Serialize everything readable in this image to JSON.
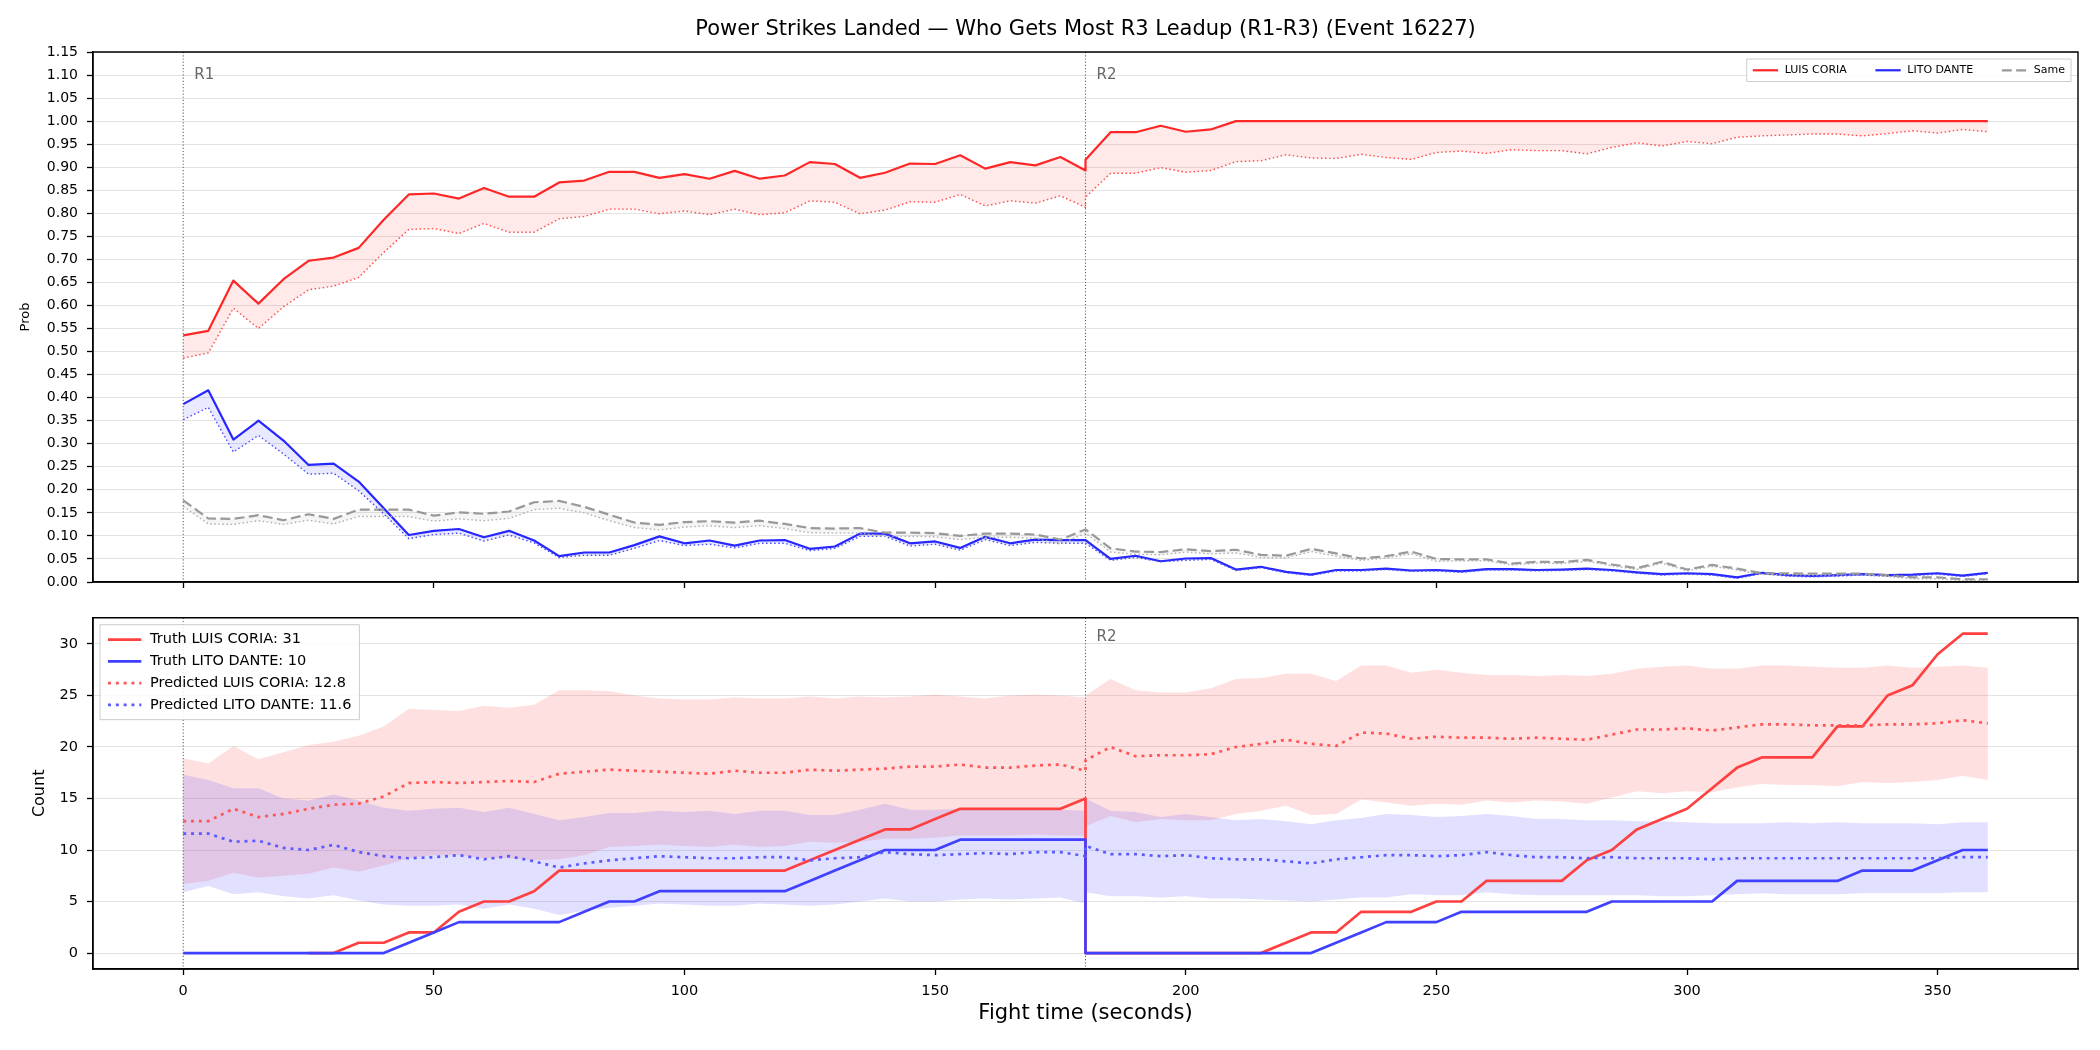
{
  "chart_data": [
    {
      "type": "line",
      "title": "Power Strikes Landed — Who Gets Most R3 Leadup (R1-R3) (Event 16227)",
      "ylabel": "Prob",
      "x": [
        0,
        5,
        10,
        15,
        20,
        25,
        30,
        35,
        40,
        45,
        50,
        55,
        60,
        65,
        70,
        75,
        80,
        85,
        90,
        95,
        100,
        105,
        110,
        115,
        120,
        125,
        130,
        135,
        140,
        145,
        150,
        155,
        160,
        165,
        170,
        175,
        180,
        180,
        185,
        190,
        195,
        200,
        205,
        210,
        215,
        220,
        225,
        230,
        235,
        240,
        245,
        250,
        255,
        260,
        265,
        270,
        275,
        280,
        285,
        290,
        295,
        300,
        305,
        310,
        315,
        320,
        325,
        330,
        335,
        340,
        345,
        350,
        355,
        360
      ],
      "xlim": [
        -18,
        378
      ],
      "xticks": [
        0,
        50,
        100,
        150,
        200,
        250,
        300,
        350
      ],
      "ylim": [
        0,
        1.15
      ],
      "yticks": [
        {
          "value": 0,
          "label": "0.00"
        },
        {
          "value": 0.05,
          "label": "0.05"
        },
        {
          "value": 0.1,
          "label": "0.10"
        },
        {
          "value": 0.15,
          "label": "0.15"
        },
        {
          "value": 0.2,
          "label": "0.20"
        },
        {
          "value": 0.25,
          "label": "0.25"
        },
        {
          "value": 0.3,
          "label": "0.30"
        },
        {
          "value": 0.35,
          "label": "0.35"
        },
        {
          "value": 0.4,
          "label": "0.40"
        },
        {
          "value": 0.45,
          "label": "0.45"
        },
        {
          "value": 0.5,
          "label": "0.50"
        },
        {
          "value": 0.55,
          "label": "0.55"
        },
        {
          "value": 0.6,
          "label": "0.60"
        },
        {
          "value": 0.65,
          "label": "0.65"
        },
        {
          "value": 0.7,
          "label": "0.70"
        },
        {
          "value": 0.75,
          "label": "0.75"
        },
        {
          "value": 0.8,
          "label": "0.80"
        },
        {
          "value": 0.85,
          "label": "0.85"
        },
        {
          "value": 0.9,
          "label": "0.90"
        },
        {
          "value": 0.95,
          "label": "0.95"
        },
        {
          "value": 1,
          "label": "1.00"
        },
        {
          "value": 1.05,
          "label": "1.05"
        },
        {
          "value": 1.1,
          "label": "1.10"
        },
        {
          "value": 1.15,
          "label": "1.15"
        }
      ],
      "tick_labels": "y",
      "grid": "y",
      "legend": "top right",
      "ref_lines": [
        {
          "axis": "x",
          "value": 0,
          "label": "R1",
          "color": "#666666",
          "line_style": "dotted"
        },
        {
          "axis": "x",
          "value": 180,
          "label": "R2",
          "color": "#666666",
          "line_style": "dotted"
        }
      ],
      "series": [
        {
          "name": "LUIS CORIA",
          "color": "#ff2626",
          "line_style": "solid",
          "values": [
            0.535,
            0.545,
            0.654,
            0.604,
            0.657,
            0.697,
            0.704,
            0.725,
            0.786,
            0.841,
            0.843,
            0.832,
            0.855,
            0.836,
            0.836,
            0.867,
            0.871,
            0.89,
            0.89,
            0.877,
            0.885,
            0.875,
            0.892,
            0.875,
            0.882,
            0.911,
            0.907,
            0.877,
            0.888,
            0.908,
            0.907,
            0.926,
            0.897,
            0.911,
            0.904,
            0.922,
            0.893,
            0.916,
            0.976,
            0.976,
            0.99,
            0.977,
            0.982,
            1,
            1,
            1,
            1,
            1,
            1,
            1,
            1,
            1,
            1,
            1,
            1,
            1,
            1,
            1,
            1,
            1,
            1,
            1,
            1,
            1,
            1,
            1,
            1,
            1,
            1,
            1,
            1,
            1,
            1,
            1
          ],
          "lower": [
            0.486,
            0.497,
            0.594,
            0.55,
            0.597,
            0.634,
            0.642,
            0.661,
            0.715,
            0.765,
            0.767,
            0.756,
            0.778,
            0.759,
            0.759,
            0.788,
            0.793,
            0.809,
            0.809,
            0.799,
            0.805,
            0.797,
            0.809,
            0.797,
            0.801,
            0.827,
            0.824,
            0.799,
            0.807,
            0.825,
            0.824,
            0.841,
            0.816,
            0.827,
            0.822,
            0.838,
            0.813,
            0.835,
            0.887,
            0.887,
            0.899,
            0.889,
            0.893,
            0.912,
            0.914,
            0.927,
            0.92,
            0.919,
            0.928,
            0.921,
            0.917,
            0.932,
            0.935,
            0.93,
            0.938,
            0.936,
            0.936,
            0.929,
            0.943,
            0.953,
            0.946,
            0.956,
            0.951,
            0.965,
            0.968,
            0.97,
            0.972,
            0.972,
            0.968,
            0.973,
            0.979,
            0.974,
            0.982,
            0.977
          ],
          "upper": [
            0.535,
            0.545,
            0.654,
            0.604,
            0.657,
            0.697,
            0.704,
            0.725,
            0.786,
            0.841,
            0.843,
            0.832,
            0.855,
            0.836,
            0.836,
            0.867,
            0.871,
            0.89,
            0.89,
            0.877,
            0.885,
            0.875,
            0.892,
            0.875,
            0.882,
            0.911,
            0.907,
            0.877,
            0.888,
            0.908,
            0.907,
            0.926,
            0.897,
            0.911,
            0.904,
            0.922,
            0.893,
            0.916,
            0.976,
            0.976,
            0.99,
            0.977,
            0.982,
            1,
            1,
            1,
            1,
            1,
            1,
            1,
            1,
            1,
            1,
            1,
            1,
            1,
            1,
            1,
            1,
            1,
            1,
            1,
            1,
            1,
            1,
            1,
            1,
            1,
            1,
            1,
            1,
            1,
            1,
            1
          ]
        },
        {
          "name": "LITO DANTE",
          "color": "#2626ff",
          "line_style": "solid",
          "values": [
            0.386,
            0.416,
            0.309,
            0.35,
            0.307,
            0.254,
            0.257,
            0.218,
            0.16,
            0.102,
            0.111,
            0.115,
            0.097,
            0.111,
            0.09,
            0.056,
            0.064,
            0.064,
            0.08,
            0.099,
            0.084,
            0.09,
            0.079,
            0.09,
            0.091,
            0.072,
            0.077,
            0.105,
            0.105,
            0.084,
            0.088,
            0.074,
            0.098,
            0.084,
            0.092,
            0.091,
            0.091,
            0.091,
            0.05,
            0.057,
            0.045,
            0.051,
            0.052,
            0.027,
            0.033,
            0.022,
            0.016,
            0.026,
            0.026,
            0.029,
            0.025,
            0.026,
            0.023,
            0.028,
            0.028,
            0.026,
            0.027,
            0.029,
            0.026,
            0.021,
            0.017,
            0.019,
            0.017,
            0.01,
            0.02,
            0.015,
            0.013,
            0.015,
            0.017,
            0.015,
            0.016,
            0.019,
            0.014,
            0.02
          ],
          "lower": [
            0.352,
            0.379,
            0.282,
            0.318,
            0.278,
            0.234,
            0.236,
            0.198,
            0.148,
            0.094,
            0.103,
            0.106,
            0.089,
            0.102,
            0.085,
            0.053,
            0.058,
            0.058,
            0.073,
            0.09,
            0.079,
            0.082,
            0.074,
            0.084,
            0.084,
            0.068,
            0.073,
            0.099,
            0.099,
            0.078,
            0.082,
            0.069,
            0.092,
            0.079,
            0.086,
            0.084,
            0.084,
            0.084,
            0.047,
            0.053,
            0.044,
            0.047,
            0.049,
            0.025,
            0.031,
            0.02,
            0.014,
            0.024,
            0.024,
            0.027,
            0.023,
            0.024,
            0.021,
            0.026,
            0.026,
            0.024,
            0.025,
            0.027,
            0.024,
            0.019,
            0.015,
            0.017,
            0.015,
            0.008,
            0.018,
            0.013,
            0.011,
            0.013,
            0.015,
            0.013,
            0.014,
            0.017,
            0.012,
            0.018
          ],
          "upper": [
            0.386,
            0.416,
            0.309,
            0.35,
            0.307,
            0.254,
            0.257,
            0.218,
            0.16,
            0.102,
            0.111,
            0.115,
            0.097,
            0.111,
            0.09,
            0.056,
            0.064,
            0.064,
            0.08,
            0.099,
            0.084,
            0.09,
            0.079,
            0.09,
            0.091,
            0.072,
            0.077,
            0.105,
            0.105,
            0.084,
            0.088,
            0.074,
            0.098,
            0.084,
            0.092,
            0.091,
            0.091,
            0.091,
            0.05,
            0.057,
            0.045,
            0.051,
            0.052,
            0.027,
            0.033,
            0.022,
            0.016,
            0.026,
            0.026,
            0.029,
            0.025,
            0.026,
            0.023,
            0.028,
            0.028,
            0.026,
            0.027,
            0.029,
            0.026,
            0.021,
            0.017,
            0.019,
            0.017,
            0.01,
            0.02,
            0.015,
            0.013,
            0.015,
            0.017,
            0.015,
            0.016,
            0.019,
            0.014,
            0.02
          ]
        },
        {
          "name": "Same",
          "color": "#999999",
          "line_style": "dashed",
          "values": [
            0.177,
            0.138,
            0.137,
            0.145,
            0.134,
            0.147,
            0.137,
            0.157,
            0.157,
            0.157,
            0.144,
            0.151,
            0.148,
            0.153,
            0.173,
            0.176,
            0.163,
            0.146,
            0.129,
            0.124,
            0.13,
            0.132,
            0.129,
            0.133,
            0.126,
            0.117,
            0.116,
            0.117,
            0.107,
            0.107,
            0.106,
            0.1,
            0.105,
            0.105,
            0.103,
            0.092,
            0.114,
            0.114,
            0.073,
            0.066,
            0.065,
            0.071,
            0.067,
            0.07,
            0.059,
            0.057,
            0.072,
            0.062,
            0.051,
            0.056,
            0.066,
            0.05,
            0.049,
            0.049,
            0.04,
            0.044,
            0.043,
            0.048,
            0.038,
            0.03,
            0.044,
            0.027,
            0.037,
            0.029,
            0.019,
            0.019,
            0.018,
            0.018,
            0.018,
            0.015,
            0.01,
            0.01,
            0.006,
            0.006
          ],
          "lower": [
            0.164,
            0.126,
            0.125,
            0.133,
            0.125,
            0.134,
            0.126,
            0.142,
            0.142,
            0.142,
            0.132,
            0.137,
            0.133,
            0.138,
            0.157,
            0.16,
            0.15,
            0.133,
            0.118,
            0.113,
            0.119,
            0.122,
            0.118,
            0.122,
            0.116,
            0.107,
            0.106,
            0.106,
            0.099,
            0.099,
            0.098,
            0.092,
            0.097,
            0.097,
            0.095,
            0.082,
            0.106,
            0.106,
            0.065,
            0.06,
            0.059,
            0.065,
            0.061,
            0.063,
            0.053,
            0.052,
            0.066,
            0.056,
            0.047,
            0.052,
            0.061,
            0.045,
            0.046,
            0.046,
            0.037,
            0.041,
            0.04,
            0.045,
            0.035,
            0.027,
            0.041,
            0.024,
            0.034,
            0.026,
            0.016,
            0.016,
            0.015,
            0.015,
            0.015,
            0.012,
            0.007,
            0.007,
            0.003,
            0.003
          ],
          "upper": [
            0.177,
            0.138,
            0.137,
            0.145,
            0.134,
            0.147,
            0.137,
            0.157,
            0.157,
            0.157,
            0.144,
            0.151,
            0.148,
            0.153,
            0.173,
            0.176,
            0.163,
            0.146,
            0.129,
            0.124,
            0.13,
            0.132,
            0.129,
            0.133,
            0.126,
            0.117,
            0.116,
            0.117,
            0.107,
            0.107,
            0.106,
            0.1,
            0.105,
            0.105,
            0.103,
            0.092,
            0.114,
            0.114,
            0.073,
            0.066,
            0.065,
            0.071,
            0.067,
            0.07,
            0.059,
            0.057,
            0.072,
            0.062,
            0.051,
            0.056,
            0.066,
            0.05,
            0.049,
            0.049,
            0.04,
            0.044,
            0.043,
            0.048,
            0.038,
            0.03,
            0.044,
            0.027,
            0.037,
            0.029,
            0.019,
            0.019,
            0.018,
            0.018,
            0.018,
            0.015,
            0.01,
            0.01,
            0.006,
            0.006
          ]
        },
        {
          "color": "#ff4d4d",
          "line_style": "dotted",
          "values": [
            0.486,
            0.497,
            0.594,
            0.55,
            0.597,
            0.634,
            0.642,
            0.661,
            0.715,
            0.765,
            0.767,
            0.756,
            0.778,
            0.759,
            0.759,
            0.788,
            0.793,
            0.809,
            0.809,
            0.799,
            0.805,
            0.797,
            0.809,
            0.797,
            0.801,
            0.827,
            0.824,
            0.799,
            0.807,
            0.825,
            0.824,
            0.841,
            0.816,
            0.827,
            0.822,
            0.838,
            0.813,
            0.835,
            0.887,
            0.887,
            0.899,
            0.889,
            0.893,
            0.912,
            0.914,
            0.927,
            0.92,
            0.919,
            0.928,
            0.921,
            0.917,
            0.932,
            0.935,
            0.93,
            0.938,
            0.936,
            0.936,
            0.929,
            0.943,
            0.953,
            0.946,
            0.956,
            0.951,
            0.965,
            0.968,
            0.97,
            0.972,
            0.972,
            0.968,
            0.973,
            0.979,
            0.974,
            0.982,
            0.977
          ]
        },
        {
          "color": "#4d4dff",
          "line_style": "dotted",
          "values": [
            0.352,
            0.379,
            0.282,
            0.318,
            0.278,
            0.234,
            0.236,
            0.198,
            0.148,
            0.094,
            0.103,
            0.106,
            0.089,
            0.102,
            0.085,
            0.053,
            0.058,
            0.058,
            0.073,
            0.09,
            0.079,
            0.082,
            0.074,
            0.084,
            0.084,
            0.068,
            0.073,
            0.099,
            0.099,
            0.078,
            0.082,
            0.069,
            0.092,
            0.079,
            0.086,
            0.084,
            0.084,
            0.084,
            0.047,
            0.053,
            0.044,
            0.047,
            0.049,
            0.025,
            0.031,
            0.02,
            0.014,
            0.024,
            0.024,
            0.027,
            0.023,
            0.024,
            0.021,
            0.026,
            0.026,
            0.024,
            0.025,
            0.027,
            0.024,
            0.019,
            0.015,
            0.017,
            0.015,
            0.008,
            0.018,
            0.013,
            0.011,
            0.013,
            0.015,
            0.013,
            0.014,
            0.017,
            0.012,
            0.018
          ]
        },
        {
          "color": "#b0b0b0",
          "line_style": "dotted",
          "values": [
            0.164,
            0.126,
            0.125,
            0.133,
            0.125,
            0.134,
            0.126,
            0.142,
            0.142,
            0.142,
            0.132,
            0.137,
            0.133,
            0.138,
            0.157,
            0.16,
            0.15,
            0.133,
            0.118,
            0.113,
            0.119,
            0.122,
            0.118,
            0.122,
            0.116,
            0.107,
            0.106,
            0.106,
            0.099,
            0.099,
            0.098,
            0.092,
            0.097,
            0.097,
            0.095,
            0.082,
            0.106,
            0.106,
            0.065,
            0.06,
            0.059,
            0.065,
            0.061,
            0.063,
            0.053,
            0.052,
            0.066,
            0.056,
            0.047,
            0.052,
            0.061,
            0.045,
            0.046,
            0.046,
            0.037,
            0.041,
            0.04,
            0.045,
            0.035,
            0.027,
            0.041,
            0.024,
            0.034,
            0.026,
            0.016,
            0.016,
            0.015,
            0.015,
            0.015,
            0.012,
            0.007,
            0.007,
            0.003,
            0.003
          ]
        }
      ]
    },
    {
      "type": "line",
      "xlabel": "Fight time (seconds)",
      "ylabel": "Count",
      "x": [
        0,
        5,
        10,
        15,
        20,
        25,
        30,
        35,
        40,
        45,
        50,
        55,
        60,
        65,
        70,
        75,
        80,
        85,
        90,
        95,
        100,
        105,
        110,
        115,
        120,
        125,
        130,
        135,
        140,
        145,
        150,
        155,
        160,
        165,
        170,
        175,
        180,
        180,
        185,
        190,
        195,
        200,
        205,
        210,
        215,
        220,
        225,
        230,
        235,
        240,
        245,
        250,
        255,
        260,
        265,
        270,
        275,
        280,
        285,
        290,
        295,
        300,
        305,
        310,
        315,
        320,
        325,
        330,
        335,
        340,
        345,
        350,
        355,
        360
      ],
      "xlim": [
        -18,
        378
      ],
      "xticks": [
        0,
        50,
        100,
        150,
        200,
        250,
        300,
        350
      ],
      "ylim": [
        -1.55,
        32.55
      ],
      "yticks": [
        0,
        5,
        10,
        15,
        20,
        25,
        30
      ],
      "grid": "y",
      "legend": "top left",
      "ref_lines": [
        {
          "axis": "x",
          "value": 0,
          "color": "#666666",
          "line_style": "dotted"
        },
        {
          "axis": "x",
          "value": 180,
          "label": "R2",
          "color": "#666666",
          "line_style": "dotted"
        }
      ],
      "series": [
        {
          "name": "Truth LUIS CORIA: 31",
          "color": "#ff4040",
          "line_style": "solid",
          "values": [
            null,
            null,
            null,
            null,
            null,
            0,
            0,
            1,
            1,
            2,
            2,
            4,
            5,
            5,
            6,
            8,
            8,
            8,
            8,
            8,
            8,
            8,
            8,
            8,
            8,
            9,
            10,
            11,
            12,
            12,
            13,
            14,
            14,
            14,
            14,
            14,
            15,
            0,
            0,
            0,
            0,
            0,
            0,
            0,
            0,
            1,
            2,
            2,
            4,
            4,
            4,
            5,
            5,
            7,
            7,
            7,
            7,
            9,
            10,
            12,
            13,
            14,
            16,
            18,
            19,
            19,
            19,
            22,
            22,
            25,
            26,
            29,
            31,
            31
          ]
        },
        {
          "name": "Truth LITO DANTE: 10",
          "color": "#4040ff",
          "line_style": "solid",
          "values": [
            0,
            0,
            0,
            0,
            0,
            0,
            0,
            0,
            0,
            1,
            2,
            3,
            3,
            3,
            3,
            3,
            4,
            5,
            5,
            6,
            6,
            6,
            6,
            6,
            6,
            7,
            8,
            9,
            10,
            10,
            10,
            11,
            11,
            11,
            11,
            11,
            11,
            0,
            0,
            0,
            0,
            0,
            0,
            0,
            0,
            0,
            0,
            1,
            2,
            3,
            3,
            3,
            4,
            4,
            4,
            4,
            4,
            4,
            5,
            5,
            5,
            5,
            5,
            7,
            7,
            7,
            7,
            7,
            8,
            8,
            8,
            9,
            10,
            10
          ]
        },
        {
          "name": "Predicted LUIS CORIA: 12.8",
          "color": "#ff5555",
          "line_style": "dotted",
          "values": [
            12.8,
            12.8,
            14.0,
            13.2,
            13.5,
            14.0,
            14.4,
            14.5,
            15.2,
            16.5,
            16.6,
            16.5,
            16.6,
            16.7,
            16.6,
            17.4,
            17.6,
            17.8,
            17.7,
            17.6,
            17.5,
            17.4,
            17.7,
            17.5,
            17.5,
            17.8,
            17.7,
            17.8,
            17.9,
            18.1,
            18.1,
            18.3,
            18.0,
            18.0,
            18.2,
            18.3,
            17.7,
            18.7,
            20.0,
            19.1,
            19.2,
            19.2,
            19.3,
            20.0,
            20.3,
            20.7,
            20.3,
            20.1,
            21.4,
            21.3,
            20.8,
            21.0,
            20.9,
            20.9,
            20.8,
            20.9,
            20.8,
            20.7,
            21.2,
            21.7,
            21.7,
            21.8,
            21.6,
            21.9,
            22.2,
            22.2,
            22.1,
            22.1,
            22.1,
            22.2,
            22.2,
            22.3,
            22.6,
            22.3
          ],
          "lower": [
            6.7,
            7.0,
            7.8,
            7.3,
            7.5,
            7.7,
            8.3,
            7.9,
            8.5,
            9.2,
            9.5,
            9.5,
            9.2,
            9.2,
            9.0,
            9.1,
            9.5,
            10.3,
            10.4,
            10.5,
            10.4,
            10.3,
            10.5,
            10.3,
            10.4,
            10.8,
            10.7,
            10.8,
            11.1,
            11.1,
            11.2,
            11.4,
            11.4,
            11.4,
            11.5,
            11.4,
            11.4,
            12.3,
            13.3,
            12.7,
            13.0,
            12.9,
            12.9,
            13.5,
            13.8,
            14.3,
            13.4,
            13.5,
            14.9,
            14.6,
            14.3,
            14.5,
            14.4,
            14.8,
            14.6,
            14.8,
            14.7,
            14.5,
            15.1,
            15.7,
            15.5,
            15.7,
            15.6,
            16.1,
            16.4,
            16.3,
            16.3,
            16.2,
            16.6,
            16.5,
            16.6,
            16.8,
            17.2,
            16.8
          ],
          "upper": [
            18.9,
            18.4,
            20.1,
            18.8,
            19.5,
            20.2,
            20.5,
            21.1,
            22.0,
            23.7,
            23.6,
            23.5,
            24.0,
            23.8,
            24.1,
            25.5,
            25.5,
            25.4,
            25.0,
            24.7,
            24.6,
            24.6,
            24.8,
            24.7,
            24.7,
            24.9,
            24.7,
            24.9,
            24.8,
            24.9,
            25.1,
            24.9,
            24.7,
            25.0,
            25.1,
            25.0,
            24.8,
            25.0,
            26.6,
            25.5,
            25.3,
            25.3,
            25.7,
            26.6,
            26.7,
            27.1,
            27.1,
            26.4,
            27.9,
            27.9,
            27.2,
            27.5,
            27.2,
            27.0,
            27.0,
            26.9,
            27.0,
            26.9,
            27.1,
            27.6,
            27.8,
            27.9,
            27.6,
            27.6,
            27.9,
            27.9,
            27.8,
            27.7,
            27.7,
            27.9,
            27.7,
            27.8,
            27.9,
            27.7
          ]
        },
        {
          "name": "Predicted LITO DANTE: 11.6",
          "color": "#5a5aff",
          "line_style": "dotted",
          "values": [
            11.6,
            11.6,
            10.8,
            10.9,
            10.2,
            10.0,
            10.5,
            9.8,
            9.4,
            9.2,
            9.3,
            9.5,
            9.1,
            9.4,
            8.9,
            8.3,
            8.7,
            9.0,
            9.2,
            9.4,
            9.3,
            9.2,
            9.2,
            9.3,
            9.3,
            9.0,
            9.2,
            9.3,
            9.8,
            9.6,
            9.5,
            9.6,
            9.7,
            9.6,
            9.8,
            9.8,
            9.4,
            10.4,
            9.6,
            9.6,
            9.4,
            9.5,
            9.2,
            9.1,
            9.1,
            8.9,
            8.7,
            9.1,
            9.3,
            9.5,
            9.5,
            9.4,
            9.5,
            9.8,
            9.5,
            9.3,
            9.3,
            9.2,
            9.3,
            9.2,
            9.2,
            9.2,
            9.1,
            9.2,
            9.2,
            9.2,
            9.2,
            9.2,
            9.2,
            9.2,
            9.2,
            9.2,
            9.3,
            9.3
          ],
          "lower": [
            5.9,
            6.5,
            5.7,
            5.9,
            5.5,
            5.3,
            5.6,
            5.1,
            4.7,
            4.6,
            4.6,
            4.7,
            4.3,
            4.7,
            4.3,
            3.7,
            4.1,
            4.4,
            4.6,
            4.8,
            4.7,
            4.6,
            4.6,
            4.8,
            4.7,
            4.6,
            4.7,
            5.0,
            5.3,
            5.0,
            5.0,
            5.2,
            5.3,
            5.2,
            5.3,
            5.4,
            4.8,
            5.9,
            5.5,
            5.5,
            5.4,
            5.5,
            5.3,
            5.3,
            5.2,
            5.1,
            5.0,
            5.2,
            5.4,
            5.4,
            5.7,
            5.6,
            5.6,
            5.9,
            5.7,
            5.6,
            5.6,
            5.6,
            5.6,
            5.6,
            5.5,
            5.5,
            5.6,
            5.7,
            5.8,
            5.7,
            5.7,
            5.7,
            5.8,
            5.8,
            5.8,
            5.8,
            5.9,
            5.9
          ],
          "upper": [
            17.3,
            16.8,
            16.0,
            16.0,
            15.0,
            14.8,
            15.4,
            14.8,
            14.1,
            13.8,
            14.0,
            14.1,
            13.7,
            14.1,
            13.5,
            12.9,
            13.2,
            13.6,
            13.6,
            13.8,
            13.7,
            13.8,
            13.5,
            13.8,
            13.8,
            13.4,
            13.4,
            13.9,
            14.5,
            13.9,
            13.9,
            14.0,
            14.0,
            14.0,
            14.0,
            13.9,
            13.8,
            15.0,
            13.8,
            13.7,
            13.2,
            13.5,
            13.2,
            12.9,
            13.0,
            12.8,
            12.5,
            12.9,
            13.1,
            13.5,
            13.4,
            13.2,
            13.3,
            13.5,
            13.3,
            13.0,
            13.0,
            12.9,
            12.9,
            12.8,
            12.8,
            12.7,
            12.6,
            12.6,
            12.6,
            12.7,
            12.6,
            12.7,
            12.6,
            12.6,
            12.6,
            12.5,
            12.7,
            12.7
          ]
        }
      ]
    }
  ]
}
